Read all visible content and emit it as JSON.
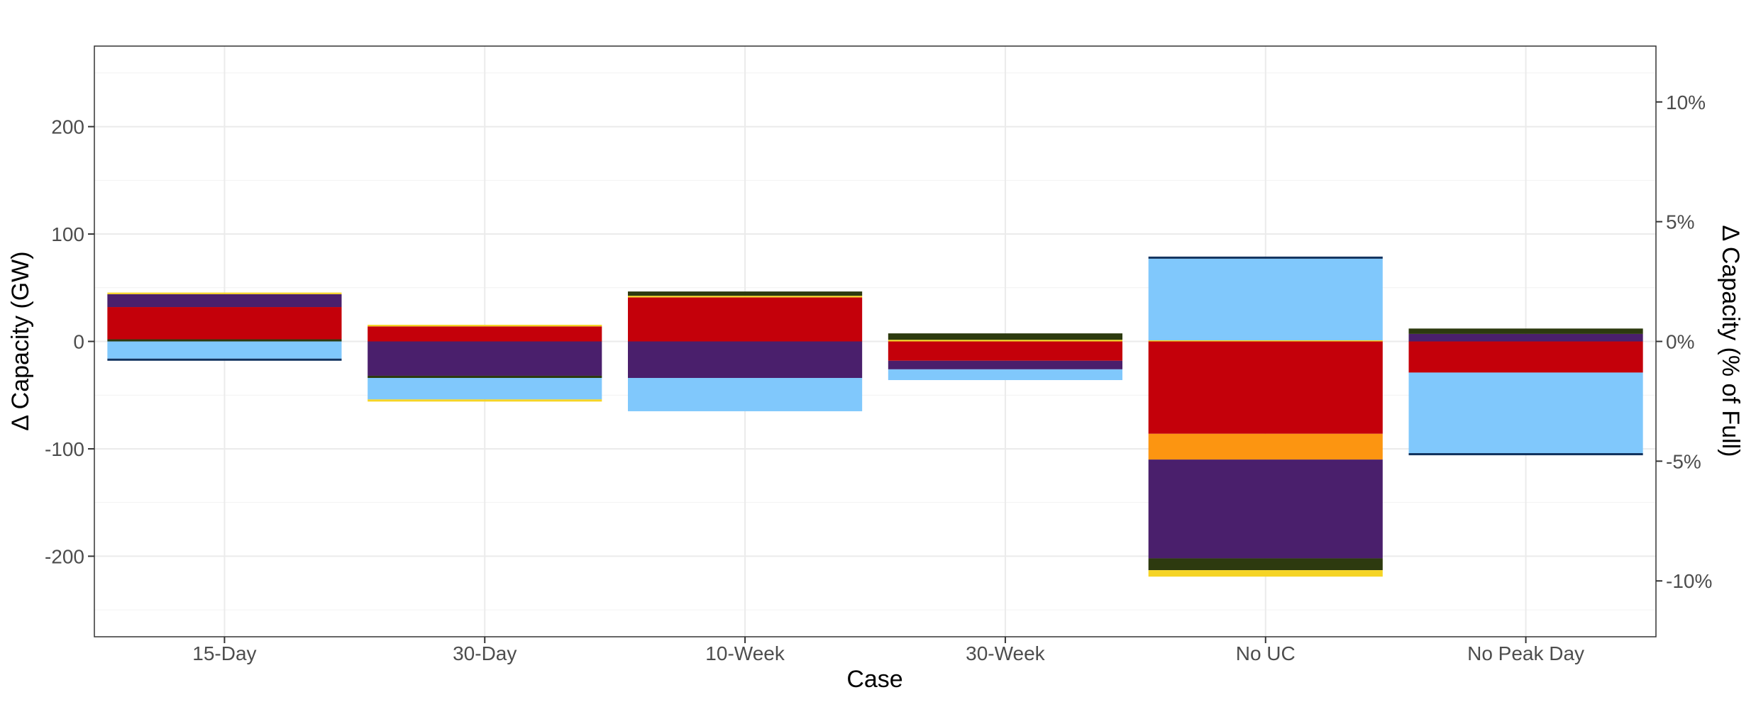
{
  "chart_data": {
    "type": "bar",
    "stacked": true,
    "xlabel": "Case",
    "ylabel": "Δ Capacity (GW)",
    "y2label": "Δ Capacity (% of Full)",
    "ylim": [
      -275,
      275
    ],
    "yticks": [
      -200,
      -100,
      0,
      100,
      200
    ],
    "yticklabels": [
      "-200",
      "-100",
      "0",
      "100",
      "200"
    ],
    "y2ticks": [
      -10,
      -5,
      0,
      5,
      10
    ],
    "y2ticklabels": [
      "-10%",
      "-5%",
      "0%",
      "5%",
      "10%"
    ],
    "y2_gw_per_percent": 22.3,
    "grid": true,
    "categories": [
      "15-Day",
      "30-Day",
      "10-Week",
      "30-Week",
      "No UC",
      "No Peak Day"
    ],
    "colors": {
      "dark_olive": "#2d3a0f",
      "yellow": "#f5d426",
      "red": "#c4000a",
      "purple": "#4a1f6c",
      "light_blue": "#80c8fc",
      "navy": "#12335f",
      "orange": "#fc9511"
    },
    "stacks": [
      {
        "category": "15-Day",
        "positive": [
          {
            "color": "dark_olive",
            "value": 2
          },
          {
            "color": "red",
            "value": 30
          },
          {
            "color": "purple",
            "value": 12
          },
          {
            "color": "yellow",
            "value": 1.5
          }
        ],
        "negative": [
          {
            "color": "light_blue",
            "value": -16
          },
          {
            "color": "navy",
            "value": -2
          }
        ]
      },
      {
        "category": "30-Day",
        "positive": [
          {
            "color": "red",
            "value": 14
          },
          {
            "color": "yellow",
            "value": 1.5
          }
        ],
        "negative": [
          {
            "color": "purple",
            "value": -32
          },
          {
            "color": "dark_olive",
            "value": -2
          },
          {
            "color": "light_blue",
            "value": -20
          },
          {
            "color": "yellow",
            "value": -2
          }
        ]
      },
      {
        "category": "10-Week",
        "positive": [
          {
            "color": "red",
            "value": 41
          },
          {
            "color": "yellow",
            "value": 1.5
          },
          {
            "color": "dark_olive",
            "value": 4
          }
        ],
        "negative": [
          {
            "color": "purple",
            "value": -34
          },
          {
            "color": "light_blue",
            "value": -31
          }
        ]
      },
      {
        "category": "30-Week",
        "positive": [
          {
            "color": "yellow",
            "value": 1.5
          },
          {
            "color": "dark_olive",
            "value": 6
          }
        ],
        "negative": [
          {
            "color": "red",
            "value": -18
          },
          {
            "color": "purple",
            "value": -8
          },
          {
            "color": "light_blue",
            "value": -10
          }
        ]
      },
      {
        "category": "No UC",
        "positive": [
          {
            "color": "yellow",
            "value": 1
          },
          {
            "color": "light_blue",
            "value": 76
          },
          {
            "color": "navy",
            "value": 2
          }
        ],
        "negative": [
          {
            "color": "red",
            "value": -86
          },
          {
            "color": "orange",
            "value": -24
          },
          {
            "color": "purple",
            "value": -92
          },
          {
            "color": "dark_olive",
            "value": -11
          },
          {
            "color": "yellow",
            "value": -6
          }
        ]
      },
      {
        "category": "No Peak Day",
        "positive": [
          {
            "color": "purple",
            "value": 7
          },
          {
            "color": "dark_olive",
            "value": 5
          }
        ],
        "negative": [
          {
            "color": "red",
            "value": -29
          },
          {
            "color": "light_blue",
            "value": -75
          },
          {
            "color": "navy",
            "value": -2
          }
        ]
      }
    ]
  }
}
